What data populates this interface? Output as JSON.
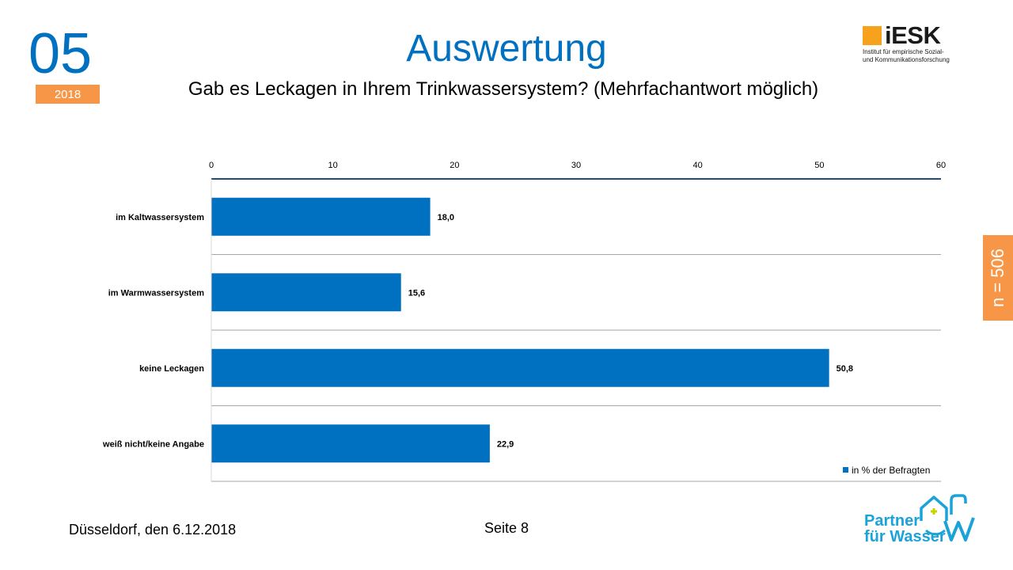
{
  "header": {
    "issue_number": "05",
    "issue_year": "2018",
    "title": "Auswertung",
    "subtitle": "Gab es Leckagen in Ihrem Trinkwassersystem? (Mehrfachantwort möglich)"
  },
  "logo_iesk": {
    "name": "iESK",
    "tagline_line1": "Institut für empirische Sozial-",
    "tagline_line2": "und Kommunikationsforschung",
    "accent": "#f7a21c"
  },
  "sample_badge": {
    "text": "n = 506",
    "color": "#f79646"
  },
  "chart_data": {
    "type": "bar",
    "orientation": "horizontal",
    "categories": [
      "im Kaltwassersystem",
      "im Warmwassersystem",
      "keine Leckagen",
      "weiß nicht/keine Angabe"
    ],
    "series": [
      {
        "name": "in % der Befragten",
        "values": [
          18.0,
          15.6,
          50.8,
          22.9
        ],
        "color": "#0070c0"
      }
    ],
    "value_labels": [
      "18,0",
      "15,6",
      "50,8",
      "22,9"
    ],
    "xlim": [
      0,
      60
    ],
    "xticks": [
      0,
      10,
      20,
      30,
      40,
      50,
      60
    ],
    "xtick_labels": [
      "0",
      "10",
      "20",
      "30",
      "40",
      "50",
      "60"
    ],
    "axis_position": "top",
    "grid": false,
    "legend_position": "bottom-right"
  },
  "footer": {
    "place_date": "Düsseldorf, den 6.12.2018",
    "page": "Seite  8"
  },
  "logo_pfw": {
    "line1": "Partner",
    "line2": "für Wasser",
    "accent": "#1ba3d8",
    "plus_color": "#c5d400"
  }
}
